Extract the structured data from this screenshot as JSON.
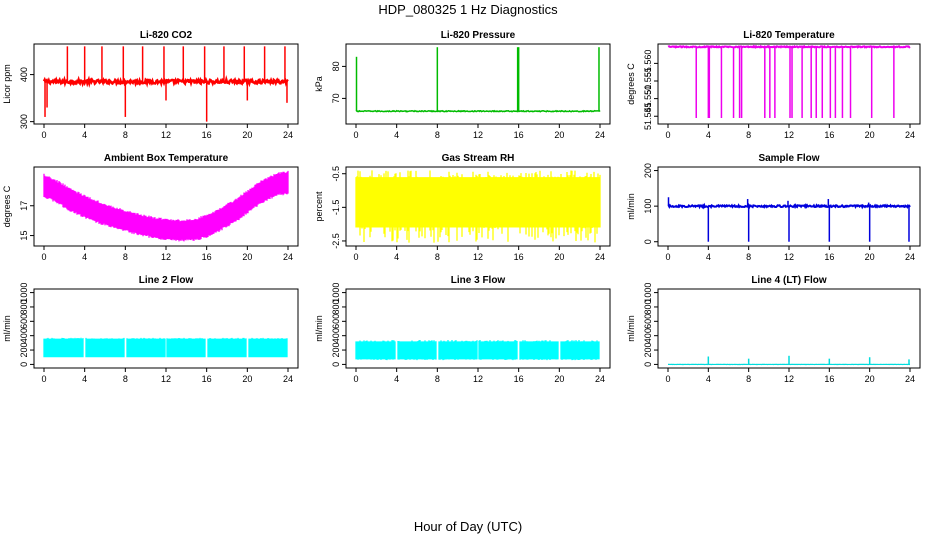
{
  "figure": {
    "title": "HDP_080325  1 Hz Diagnostics",
    "xlabel": "Hour of Day (UTC)"
  },
  "chart_data": [
    {
      "type": "line",
      "title": "Li-820 CO2",
      "ylabel": "Licor ppm",
      "color": "#ff0000",
      "xlim": [
        0,
        24
      ],
      "ylim": [
        295,
        465
      ],
      "xticks": [
        "0",
        "4",
        "8",
        "12",
        "16",
        "20",
        "24"
      ],
      "yticks": [
        300,
        400
      ],
      "signal": {
        "baseline": 385,
        "noise": 4,
        "line_width": 2.5
      },
      "spikes": [
        {
          "x": 0.1,
          "y": 310
        },
        {
          "x": 0.3,
          "y": 330
        },
        {
          "x": 2.3,
          "y": 460
        },
        {
          "x": 4.0,
          "y": 460
        },
        {
          "x": 5.7,
          "y": 460
        },
        {
          "x": 7.8,
          "y": 460
        },
        {
          "x": 8.0,
          "y": 310
        },
        {
          "x": 9.7,
          "y": 460
        },
        {
          "x": 11.8,
          "y": 460
        },
        {
          "x": 12.0,
          "y": 345
        },
        {
          "x": 13.7,
          "y": 460
        },
        {
          "x": 15.8,
          "y": 460
        },
        {
          "x": 16.0,
          "y": 300
        },
        {
          "x": 17.7,
          "y": 460
        },
        {
          "x": 19.7,
          "y": 460
        },
        {
          "x": 20.0,
          "y": 345
        },
        {
          "x": 21.7,
          "y": 460
        },
        {
          "x": 23.7,
          "y": 460
        },
        {
          "x": 23.9,
          "y": 340
        }
      ]
    },
    {
      "type": "line",
      "title": "Li-820 Pressure",
      "ylabel": "kPa",
      "color": "#00bb00",
      "xlim": [
        0,
        24
      ],
      "ylim": [
        62,
        87
      ],
      "xticks": [
        "0",
        "4",
        "8",
        "12",
        "16",
        "20",
        "24"
      ],
      "yticks": [
        70,
        80
      ],
      "signal": {
        "baseline": 66,
        "noise": 0.15,
        "line_width": 1.5
      },
      "spikes": [
        {
          "x": 0.05,
          "y": 83
        },
        {
          "x": 8.0,
          "y": 86
        },
        {
          "x": 15.9,
          "y": 86
        },
        {
          "x": 16.0,
          "y": 86
        },
        {
          "x": 23.9,
          "y": 86
        }
      ]
    },
    {
      "type": "line",
      "title": "Li-820 Temperature",
      "ylabel": "degrees C",
      "color": "#ee00ee",
      "xlim": [
        0,
        24
      ],
      "ylim": [
        51.5428,
        51.5655
      ],
      "xticks": [
        "0",
        "4",
        "8",
        "12",
        "16",
        "20",
        "24"
      ],
      "yticks": [
        "51.545",
        "51.550",
        "51.555",
        "51.560"
      ],
      "signal": {
        "baseline": 51.5647,
        "noise": 0.00015,
        "line_width": 2
      },
      "spikes": [
        {
          "x": 2.8,
          "y": 51.5445
        },
        {
          "x": 4.0,
          "y": 51.5445
        },
        {
          "x": 4.1,
          "y": 51.5445
        },
        {
          "x": 5.3,
          "y": 51.5445
        },
        {
          "x": 6.5,
          "y": 51.5445
        },
        {
          "x": 7.1,
          "y": 51.5445
        },
        {
          "x": 7.3,
          "y": 51.5445
        },
        {
          "x": 9.6,
          "y": 51.5445
        },
        {
          "x": 10.1,
          "y": 51.5445
        },
        {
          "x": 10.6,
          "y": 51.5445
        },
        {
          "x": 12.1,
          "y": 51.5445
        },
        {
          "x": 12.3,
          "y": 51.5445
        },
        {
          "x": 13.3,
          "y": 51.5445
        },
        {
          "x": 14.2,
          "y": 51.5445
        },
        {
          "x": 14.7,
          "y": 51.5445
        },
        {
          "x": 15.3,
          "y": 51.5445
        },
        {
          "x": 16.1,
          "y": 51.5445
        },
        {
          "x": 16.6,
          "y": 51.5445
        },
        {
          "x": 17.3,
          "y": 51.5445
        },
        {
          "x": 18.1,
          "y": 51.5445
        },
        {
          "x": 20.2,
          "y": 51.5445
        },
        {
          "x": 22.4,
          "y": 51.5445
        }
      ]
    },
    {
      "type": "area",
      "title": "Ambient Box Temperature",
      "ylabel": "degrees C",
      "color": "#ff00ff",
      "xlim": [
        0,
        24
      ],
      "ylim": [
        14.3,
        19.6
      ],
      "xticks": [
        "0",
        "4",
        "8",
        "12",
        "16",
        "20",
        "24"
      ],
      "yticks": [
        15,
        17
      ],
      "band": {
        "x": [
          0,
          1,
          2,
          3,
          4,
          5,
          6,
          7,
          8,
          9,
          10,
          11,
          12,
          13,
          14,
          15,
          16,
          17,
          18,
          19,
          20,
          21,
          22,
          23,
          24
        ],
        "low": [
          17.7,
          17.4,
          17.0,
          16.6,
          16.3,
          16.0,
          15.8,
          15.6,
          15.4,
          15.2,
          15.05,
          14.9,
          14.8,
          14.75,
          14.75,
          14.8,
          15.0,
          15.3,
          15.7,
          16.1,
          16.6,
          17.1,
          17.5,
          17.8,
          17.9
        ],
        "high": [
          19.0,
          18.7,
          18.3,
          17.9,
          17.6,
          17.3,
          17.0,
          16.8,
          16.6,
          16.4,
          16.25,
          16.1,
          16.0,
          15.95,
          15.95,
          16.05,
          16.3,
          16.6,
          17.0,
          17.4,
          17.9,
          18.4,
          18.8,
          19.1,
          19.2
        ]
      }
    },
    {
      "type": "area",
      "title": "Gas Stream RH",
      "ylabel": "percent",
      "color": "#ffff00",
      "xlim": [
        0,
        24
      ],
      "ylim": [
        -2.65,
        -0.3
      ],
      "xticks": [
        "0",
        "4",
        "8",
        "12",
        "16",
        "20",
        "24"
      ],
      "yticks": [
        "-2.5",
        "-1.5",
        "-0.5"
      ],
      "band": {
        "x": [
          0,
          24
        ],
        "low": [
          -2.1,
          -2.1
        ],
        "high": [
          -0.6,
          -0.6
        ]
      },
      "spread": {
        "low_min": -2.55,
        "high_max": -0.4
      }
    },
    {
      "type": "line",
      "title": "Sample Flow",
      "ylabel": "ml/min",
      "color": "#0000dd",
      "xlim": [
        0,
        24
      ],
      "ylim": [
        -12,
        210
      ],
      "xticks": [
        "0",
        "4",
        "8",
        "12",
        "16",
        "20",
        "24"
      ],
      "yticks": [
        0,
        100,
        200
      ],
      "signal": {
        "baseline": 100,
        "noise": 2.5,
        "line_width": 2
      },
      "spikes": [
        {
          "x": 0.05,
          "y": 125
        },
        {
          "x": 4.0,
          "y": 0
        },
        {
          "x": 7.9,
          "y": 120
        },
        {
          "x": 8.0,
          "y": 0
        },
        {
          "x": 11.9,
          "y": 115
        },
        {
          "x": 12.0,
          "y": 0
        },
        {
          "x": 15.9,
          "y": 120
        },
        {
          "x": 16.0,
          "y": 0
        },
        {
          "x": 19.9,
          "y": 110
        },
        {
          "x": 20.0,
          "y": 0
        },
        {
          "x": 23.9,
          "y": 0
        }
      ]
    },
    {
      "type": "area",
      "title": "Line 2 Flow",
      "ylabel": "ml/min",
      "color": "#00ffff",
      "xlim": [
        0,
        24
      ],
      "ylim": [
        -50,
        1050
      ],
      "xticks": [
        "0",
        "4",
        "8",
        "12",
        "16",
        "20",
        "24"
      ],
      "yticks": [
        0,
        200,
        400,
        600,
        800,
        1000
      ],
      "band": {
        "x": [
          0,
          24
        ],
        "low": [
          100,
          100
        ],
        "high": [
          360,
          360
        ]
      },
      "gaps": [
        4,
        8,
        12,
        16,
        20,
        24
      ],
      "spread": {
        "low_min": 100,
        "high_max": 370
      }
    },
    {
      "type": "area",
      "title": "Line 3 Flow",
      "ylabel": "ml/min",
      "color": "#00ffff",
      "xlim": [
        0,
        24
      ],
      "ylim": [
        -50,
        1050
      ],
      "xticks": [
        "0",
        "4",
        "8",
        "12",
        "16",
        "20",
        "24"
      ],
      "yticks": [
        0,
        200,
        400,
        600,
        800,
        1000
      ],
      "band": {
        "x": [
          0,
          24
        ],
        "low": [
          70,
          70
        ],
        "high": [
          320,
          320
        ]
      },
      "gaps": [
        4,
        8,
        12,
        16,
        20,
        24
      ],
      "spread": {
        "low_min": 60,
        "high_max": 340
      }
    },
    {
      "type": "line",
      "title": "Line 4 (LT) Flow",
      "ylabel": "ml/min",
      "color": "#00dddd",
      "xlim": [
        0,
        24
      ],
      "ylim": [
        -50,
        1050
      ],
      "xticks": [
        "0",
        "4",
        "8",
        "12",
        "16",
        "20",
        "24"
      ],
      "yticks": [
        0,
        200,
        400,
        600,
        800,
        1000
      ],
      "signal": {
        "baseline": 0,
        "noise": 1,
        "line_width": 1.2
      },
      "spikes": [
        {
          "x": 4.0,
          "y": 110
        },
        {
          "x": 8.0,
          "y": 80
        },
        {
          "x": 12.0,
          "y": 120
        },
        {
          "x": 16.0,
          "y": 80
        },
        {
          "x": 20.0,
          "y": 100
        },
        {
          "x": 23.9,
          "y": 70
        }
      ]
    }
  ]
}
